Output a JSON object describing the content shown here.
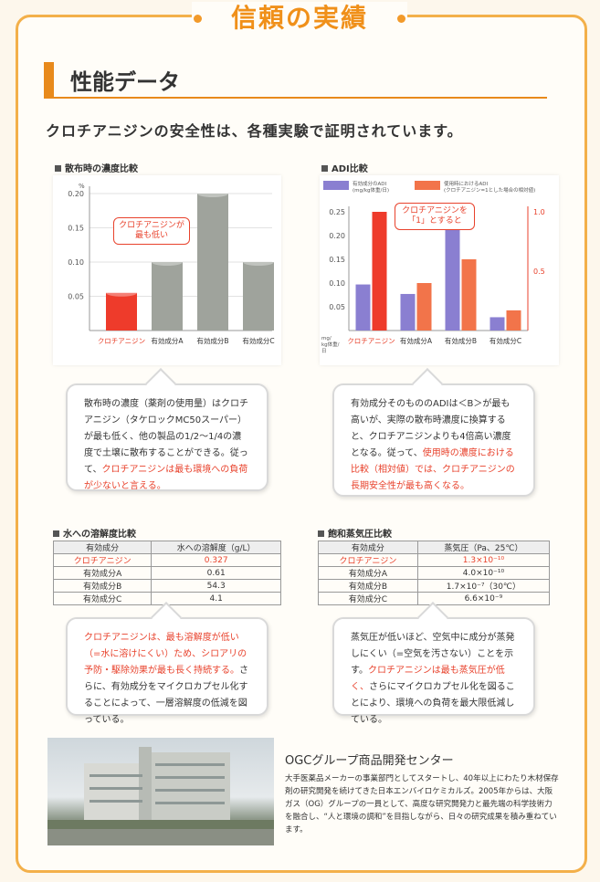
{
  "banner": {
    "title": "信頼の実績"
  },
  "section": {
    "title": "性能データ"
  },
  "headline": "クロチアニジンの安全性は、各種実験で証明されています。",
  "chart_data": [
    {
      "type": "bar",
      "title": "散布時の濃度比較",
      "unit": "%",
      "categories": [
        "クロチアニジン",
        "有効成分A",
        "有効成分B",
        "有効成分C"
      ],
      "values": [
        0.055,
        0.1,
        0.2,
        0.1
      ],
      "ylim": [
        0,
        0.2
      ],
      "ticks": [
        "0.05",
        "0.10",
        "0.15",
        "0.20"
      ],
      "colors": [
        "#ee3b2b",
        "#9fa39c",
        "#9fa39c",
        "#9fa39c"
      ],
      "callout": "クロチアニジンが\n最も低い"
    },
    {
      "type": "bar",
      "title": "ADI比較",
      "categories": [
        "クロチアニジン",
        "有効成分A",
        "有効成分B",
        "有効成分C"
      ],
      "series": [
        {
          "name": "有効成分のADI\n(mg/kg体重/日)",
          "color": "#8a7fd1",
          "values": [
            0.097,
            0.077,
            0.22,
            0.028
          ]
        },
        {
          "name": "使用時におけるADI\n(クロチアニジン=1とした場合の相対値)",
          "color": "#f2744a",
          "values": [
            1.0,
            0.4,
            0.6,
            0.17
          ]
        }
      ],
      "left_axis": {
        "ticks": [
          "0.05",
          "0.10",
          "0.15",
          "0.20",
          "0.25"
        ],
        "ylim": [
          0,
          0.25
        ]
      },
      "right_axis": {
        "ticks": [
          "0.5",
          "1.0"
        ],
        "ylim": [
          0,
          1.0
        ]
      },
      "left_unit": "mg/\nkg体重/\n日",
      "callout": "クロチアニジンを\n「1」とすると"
    }
  ],
  "bubble1": {
    "text_a": "散布時の濃度（薬剤の使用量）はクロチアニジン（タケロックMC50スーパー）が最も低く、他の製品の1/2〜1/4の濃度で土壌に散布することができる。従って、",
    "text_red": "クロチアニジンは最も環境への負荷が少ないと言える。"
  },
  "bubble2": {
    "text_a": "有効成分そのもののADIは＜B＞が最も高いが、実際の散布時濃度に換算すると、クロチアニジンよりも4倍高い濃度となる。従って、",
    "text_red": "使用時の濃度における比較（相対値）では、クロチアニジンの長期安全性が最も高くなる。"
  },
  "table1": {
    "title": "水への溶解度比較",
    "headers": [
      "有効成分",
      "水への溶解度（g/L）"
    ],
    "rows": [
      [
        "クロチアニジン",
        "0.327"
      ],
      [
        "有効成分A",
        "0.61"
      ],
      [
        "有効成分B",
        "54.3"
      ],
      [
        "有効成分C",
        "4.1"
      ]
    ]
  },
  "table2": {
    "title": "飽和蒸気圧比較",
    "headers": [
      "有効成分",
      "蒸気圧（Pa、25℃）"
    ],
    "rows": [
      [
        "クロチアニジン",
        "1.3×10⁻¹⁰"
      ],
      [
        "有効成分A",
        "4.0×10⁻¹⁰"
      ],
      [
        "有効成分B",
        "1.7×10⁻⁷（30℃）"
      ],
      [
        "有効成分C",
        "6.6×10⁻⁹"
      ]
    ]
  },
  "bubble3": {
    "text_red": "クロチアニジンは、最も溶解度が低い（=水に溶けにくい）ため、シロアリの予防・駆除効果が最も長く持続する。",
    "text_b": "さらに、有効成分をマイクロカプセル化することによって、一層溶解度の低減を図っている。"
  },
  "bubble4": {
    "text_a": "蒸気圧が低いほど、空気中に成分が蒸発しにくい（=空気を汚さない）ことを示す。",
    "text_red": "クロチアニジンは最も蒸気圧が低く、",
    "text_b": "さらにマイクロカプセル化を図ることにより、環境への負荷を最大限低減している。"
  },
  "ogc": {
    "title": "OGCグループ商品開発センター",
    "body": "大手医薬品メーカーの事業部門としてスタートし、40年以上にわたり木材保存剤の研究開発を続けてきた日本エンバイロケミカルズ。2005年からは、大阪ガス（OG）グループの一員として、高度な研究開発力と最先端の科学技術力を融合し、“人と環境の調和”を目指しながら、日々の研究成果を積み重ねています。"
  }
}
